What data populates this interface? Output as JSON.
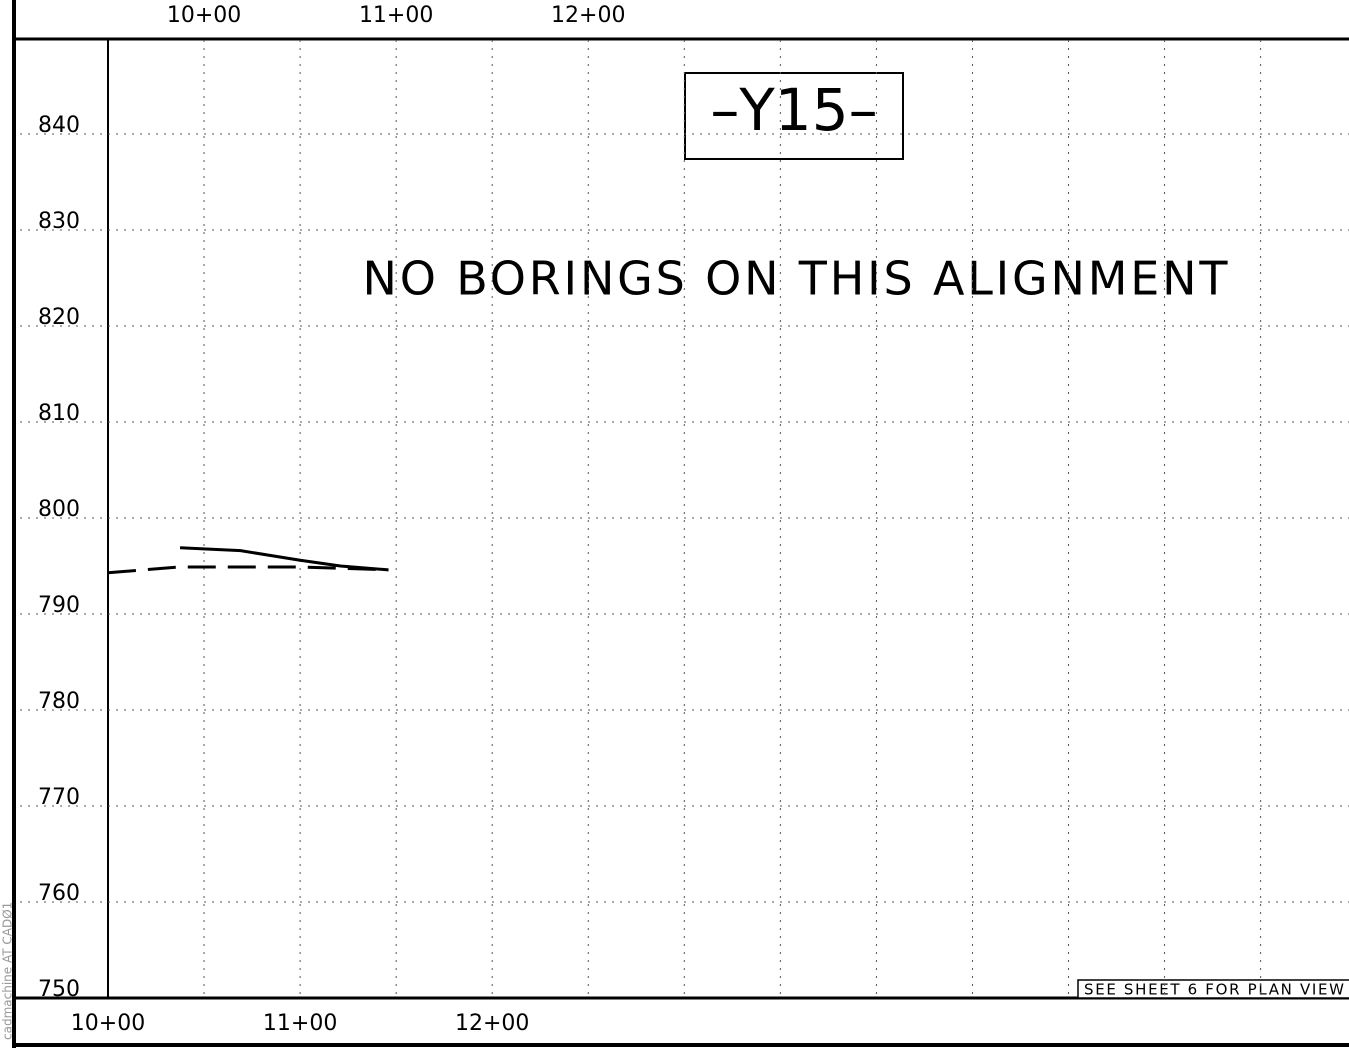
{
  "chart_data": {
    "type": "line",
    "title": "–Y15–",
    "subtitle": "NO BORINGS ON THIS ALIGNMENT",
    "annotations": [
      "SEE SHEET 6 FOR PLAN VIEW",
      "cadmachine AT CADØ1"
    ],
    "xlim": [
      1000,
      1646
    ],
    "xticks": [
      {
        "value": 1000,
        "label": "10+00"
      },
      {
        "value": 1100,
        "label": "11+00"
      },
      {
        "value": 1200,
        "label": "12+00"
      }
    ],
    "xgrid": [
      1050,
      1100,
      1150,
      1200,
      1250,
      1300,
      1350,
      1400,
      1450,
      1500,
      1550,
      1600
    ],
    "x2lim": [
      950,
      1596
    ],
    "x2ticks": [
      {
        "value": 1000,
        "label": "10+00"
      },
      {
        "value": 1100,
        "label": "11+00"
      },
      {
        "value": 1200,
        "label": "12+00"
      }
    ],
    "ylim": [
      750,
      850
    ],
    "yticks": [
      750,
      760,
      770,
      780,
      790,
      800,
      810,
      820,
      830,
      840
    ],
    "grid": true,
    "series": [
      {
        "color": "#000000",
        "dash": true,
        "x": [
          1000,
          1037.5,
          1100,
          1146
        ],
        "values": [
          794.3,
          794.9,
          794.9,
          794.6
        ]
      },
      {
        "color": "#000000",
        "dash": false,
        "x": [
          1037.5,
          1069,
          1100,
          1121,
          1146
        ],
        "values": [
          796.9,
          796.6,
          795.6,
          795.0,
          794.6
        ]
      }
    ]
  }
}
